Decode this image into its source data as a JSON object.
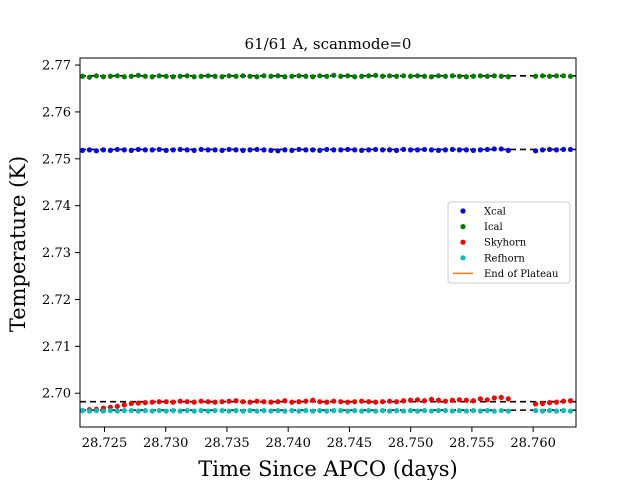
{
  "chart_data": {
    "type": "scatter",
    "title": "61/61 A, scanmode=0",
    "xlabel": "Time Since APCO (days)",
    "ylabel": "Temperature (K)",
    "xlim": [
      28.723,
      28.7635
    ],
    "ylim": [
      2.6928,
      2.7715
    ],
    "xticks": [
      28.725,
      28.73,
      28.735,
      28.74,
      28.745,
      28.75,
      28.755,
      28.76
    ],
    "xtick_labels": [
      "28.725",
      "28.730",
      "28.735",
      "28.740",
      "28.745",
      "28.750",
      "28.755",
      "28.760"
    ],
    "yticks": [
      2.7,
      2.71,
      2.72,
      2.73,
      2.74,
      2.75,
      2.76,
      2.77
    ],
    "ytick_labels": [
      "2.70",
      "2.71",
      "2.72",
      "2.73",
      "2.74",
      "2.75",
      "2.76",
      "2.77"
    ],
    "grid": false,
    "legend_position": "center-right",
    "x_start": 28.7232,
    "x_step": 0.00057,
    "gap": [
      28.758,
      28.7602
    ],
    "series": [
      {
        "name": "Xcal",
        "color": "#0000ff",
        "kind": "points",
        "points": [
          2.7518,
          2.7519,
          2.7517,
          2.7519,
          2.7518,
          2.752,
          2.7519,
          2.7518,
          2.752,
          2.7519,
          2.7519,
          2.752,
          2.7518,
          2.7519,
          2.752,
          2.7519,
          2.7518,
          2.752,
          2.7519,
          2.7519,
          2.7518,
          2.752,
          2.7519,
          2.7518,
          2.7519,
          2.752,
          2.7519,
          2.7518,
          2.7517,
          2.7519,
          2.7518,
          2.752,
          2.7519,
          2.7519,
          2.7518,
          2.752,
          2.7519,
          2.7519,
          2.752,
          2.7519,
          2.7518,
          2.7519,
          2.752,
          2.7519,
          2.7519,
          2.7518,
          2.752,
          2.7519,
          2.7519,
          2.752,
          2.7519,
          2.7518,
          2.7519,
          2.752,
          2.7519,
          2.7519,
          2.7518,
          2.7519,
          2.752,
          2.7521,
          2.7521,
          2.7518,
          2.7517,
          2.7519,
          2.752,
          2.7519,
          2.752,
          2.752
        ]
      },
      {
        "name": "Ical",
        "color": "#008000",
        "kind": "points",
        "points": [
          2.7676,
          2.7674,
          2.7677,
          2.7675,
          2.7676,
          2.7677,
          2.7675,
          2.7676,
          2.7678,
          2.7676,
          2.7675,
          2.7677,
          2.7676,
          2.7675,
          2.7676,
          2.7677,
          2.7675,
          2.7676,
          2.7677,
          2.7676,
          2.7675,
          2.7677,
          2.7676,
          2.7677,
          2.7676,
          2.7675,
          2.7677,
          2.7676,
          2.7677,
          2.7675,
          2.7676,
          2.7677,
          2.7676,
          2.7675,
          2.7677,
          2.7676,
          2.7678,
          2.7676,
          2.7677,
          2.7675,
          2.7676,
          2.7677,
          2.7678,
          2.7676,
          2.7677,
          2.7676,
          2.7677,
          2.7676,
          2.7677,
          2.7676,
          2.7675,
          2.7677,
          2.7676,
          2.7677,
          2.7676,
          2.7675,
          2.7676,
          2.7677,
          2.7676,
          2.7677,
          2.7676,
          2.7675,
          2.7676,
          2.7677,
          2.7676,
          2.7677,
          2.7677,
          2.7676
        ]
      },
      {
        "name": "Skyhorn",
        "color": "#ff0000",
        "kind": "points",
        "points": [
          2.6963,
          2.6965,
          2.6966,
          2.6968,
          2.697,
          2.6972,
          2.6975,
          2.6978,
          2.6979,
          2.698,
          2.6981,
          2.6982,
          2.6982,
          2.6981,
          2.6983,
          2.6982,
          2.6981,
          2.6983,
          2.6982,
          2.6981,
          2.6982,
          2.6983,
          2.6984,
          2.6982,
          2.6981,
          2.6983,
          2.6982,
          2.6981,
          2.6982,
          2.6984,
          2.6981,
          2.6982,
          2.6983,
          2.6985,
          2.6982,
          2.6981,
          2.6983,
          2.6982,
          2.6981,
          2.6982,
          2.6983,
          2.6982,
          2.6981,
          2.6982,
          2.6983,
          2.6982,
          2.6984,
          2.6985,
          2.6986,
          2.6984,
          2.6987,
          2.6985,
          2.6983,
          2.6985,
          2.6986,
          2.6985,
          2.6984,
          2.6988,
          2.6986,
          2.699,
          2.6991,
          2.6988,
          2.6977,
          2.6978,
          2.698,
          2.6981,
          2.6983,
          2.6984
        ]
      },
      {
        "name": "Refhorn",
        "color": "#00bfbf",
        "kind": "points",
        "points": [
          2.6963,
          2.6962,
          2.6963,
          2.6962,
          2.6963,
          2.6962,
          2.6963,
          2.6963,
          2.6962,
          2.6963,
          2.6962,
          2.6963,
          2.6962,
          2.6963,
          2.6962,
          2.6963,
          2.6962,
          2.6963,
          2.6962,
          2.6963,
          2.6963,
          2.6962,
          2.6963,
          2.6962,
          2.6963,
          2.6962,
          2.6963,
          2.6962,
          2.6963,
          2.6962,
          2.6963,
          2.6962,
          2.6963,
          2.6962,
          2.6963,
          2.6962,
          2.6963,
          2.6963,
          2.6962,
          2.6963,
          2.6962,
          2.6963,
          2.6962,
          2.6963,
          2.6962,
          2.6963,
          2.6962,
          2.6963,
          2.6962,
          2.6963,
          2.6962,
          2.6963,
          2.6963,
          2.6962,
          2.6963,
          2.6962,
          2.6963,
          2.6962,
          2.6963,
          2.6962,
          2.6963,
          2.6962,
          2.6963,
          2.6962,
          2.6963,
          2.6962,
          2.6963,
          2.6962
        ]
      },
      {
        "name": "End of Plateau",
        "color": "#ff7f0e",
        "kind": "legend-only"
      }
    ],
    "reference_lines": [
      {
        "y": 2.7677,
        "color": "#000000",
        "style": "dashed"
      },
      {
        "y": 2.752,
        "color": "#000000",
        "style": "dashed"
      },
      {
        "y": 2.6982,
        "color": "#000000",
        "style": "dashed"
      },
      {
        "y": 2.6964,
        "color": "#000000",
        "style": "dashed"
      }
    ]
  }
}
